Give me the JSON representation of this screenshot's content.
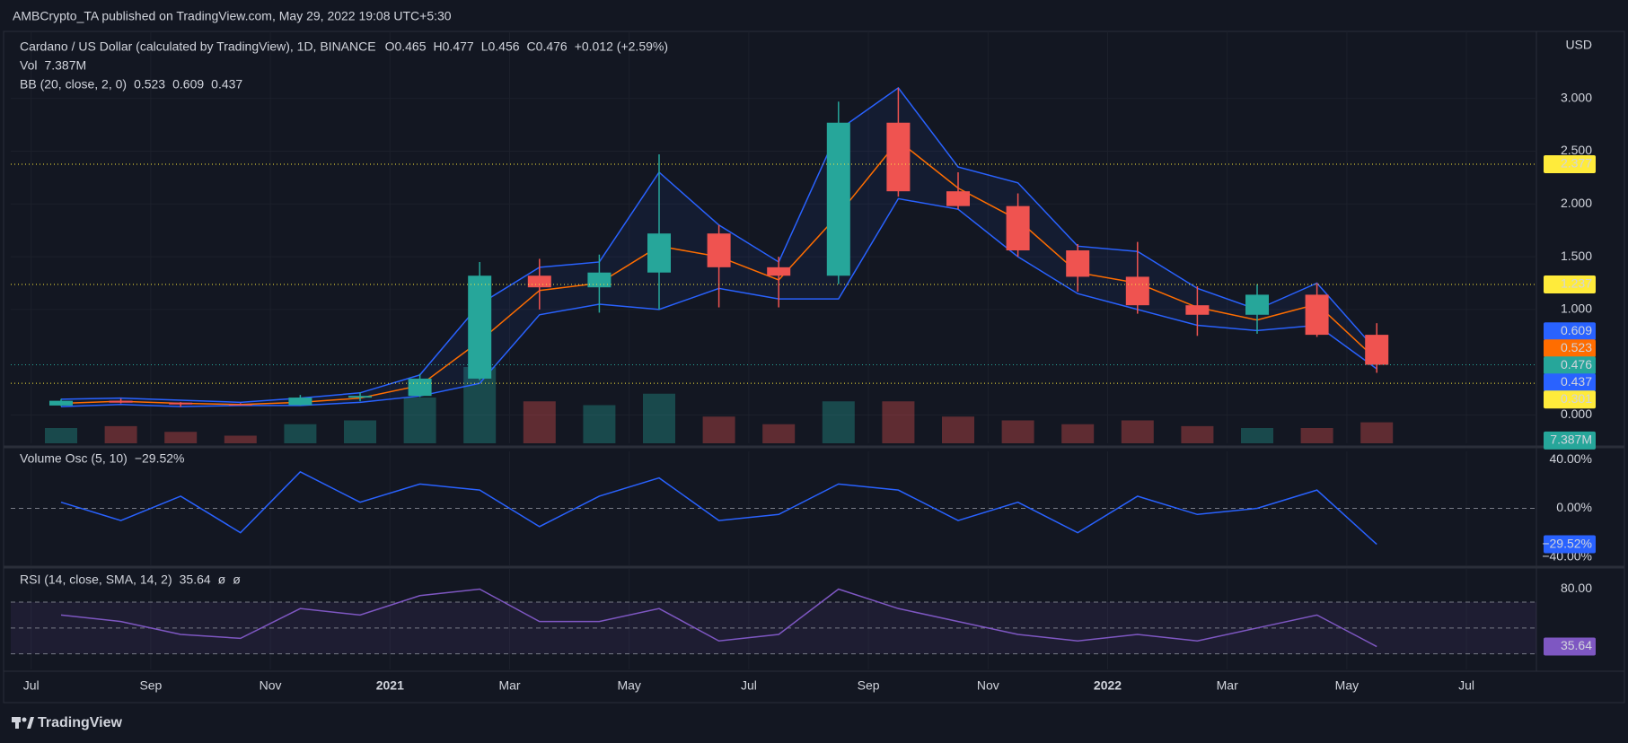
{
  "header": {
    "publisher": "AMBCrypto_TA published on TradingView.com, May 29, 2022 19:08 UTC+5:30"
  },
  "chart_data": [
    {
      "type": "candlestick",
      "title": "Cardano / US Dollar (calculated by TradingView), 1D, BINANCE",
      "legend": [
        {
          "key": "O",
          "value": 0.465
        },
        {
          "key": "H",
          "value": 0.477
        },
        {
          "key": "L",
          "value": 0.456
        },
        {
          "key": "C",
          "value": 0.476
        }
      ],
      "change": "+0.012 (+2.59%)",
      "y_axis_label": "USD",
      "x": [
        "2020-07",
        "2020-08",
        "2020-09",
        "2020-10",
        "2020-11",
        "2020-12",
        "2021-01",
        "2021-02",
        "2021-03",
        "2021-04",
        "2021-05",
        "2021-06",
        "2021-07",
        "2021-08",
        "2021-09",
        "2021-10",
        "2021-11",
        "2021-12",
        "2022-01",
        "2022-02",
        "2022-03",
        "2022-04",
        "2022-05"
      ],
      "open": [
        0.09,
        0.135,
        0.117,
        0.1,
        0.094,
        0.165,
        0.181,
        0.345,
        1.32,
        1.21,
        1.35,
        1.72,
        1.4,
        1.32,
        2.77,
        2.12,
        1.98,
        1.56,
        1.31,
        1.04,
        0.95,
        1.14,
        0.76
      ],
      "high": [
        0.152,
        0.155,
        0.122,
        0.112,
        0.19,
        0.215,
        0.39,
        1.45,
        1.48,
        1.52,
        2.47,
        1.8,
        1.5,
        2.97,
        3.1,
        2.3,
        2.1,
        1.62,
        1.64,
        1.22,
        1.24,
        1.25,
        0.87
      ],
      "low": [
        0.085,
        0.11,
        0.077,
        0.091,
        0.09,
        0.13,
        0.17,
        0.33,
        1.0,
        0.97,
        1.0,
        1.02,
        1.02,
        1.24,
        2.07,
        1.95,
        1.5,
        1.17,
        0.96,
        0.75,
        0.77,
        0.74,
        0.4
      ],
      "close": [
        0.135,
        0.117,
        0.1,
        0.094,
        0.165,
        0.181,
        0.345,
        1.32,
        1.21,
        1.35,
        1.72,
        1.4,
        1.32,
        2.77,
        2.12,
        1.98,
        1.56,
        1.31,
        1.04,
        0.95,
        1.14,
        0.76,
        0.476
      ],
      "up_color": "#26a69a",
      "down_color": "#ef5350",
      "ylim": [
        -0.268,
        3.635
      ],
      "yticks": [
        {
          "value": 0,
          "label": "0.000"
        },
        {
          "value": 1,
          "label": "1.000"
        },
        {
          "value": 1.5,
          "label": "1.500"
        },
        {
          "value": 2,
          "label": "2.000"
        },
        {
          "value": 2.5,
          "label": "2.500"
        },
        {
          "value": 3,
          "label": "3.000"
        }
      ],
      "xticks": [
        {
          "value": "2020-07",
          "label": "Jul"
        },
        {
          "value": "2020-09",
          "label": "Sep"
        },
        {
          "value": "2020-11",
          "label": "Nov"
        },
        {
          "value": "2021-01",
          "label": "2021"
        },
        {
          "value": "2021-03",
          "label": "Mar"
        },
        {
          "value": "2021-05",
          "label": "May"
        },
        {
          "value": "2021-07",
          "label": "Jul"
        },
        {
          "value": "2021-09",
          "label": "Sep"
        },
        {
          "value": "2021-11",
          "label": "Nov"
        },
        {
          "value": "2022-01",
          "label": "2022"
        },
        {
          "value": "2022-03",
          "label": "Mar"
        },
        {
          "value": "2022-05",
          "label": "May"
        },
        {
          "value": "2022-07",
          "label": "Jul"
        }
      ],
      "grid": true,
      "volume": {
        "name": "Vol",
        "values": [
          40,
          45,
          30,
          20,
          50,
          60,
          120,
          200,
          110,
          100,
          130,
          70,
          50,
          110,
          110,
          70,
          60,
          50,
          60,
          45,
          40,
          40,
          55
        ],
        "last": {
          "value": 7.387,
          "label": "7.387M"
        }
      },
      "bb": {
        "name": "BB (20, close, 2, 0)",
        "basis": {
          "color": "#ff6d00",
          "values": [
            0.11,
            0.13,
            0.11,
            0.1,
            0.12,
            0.16,
            0.28,
            0.7,
            1.18,
            1.25,
            1.6,
            1.5,
            1.28,
            1.9,
            2.6,
            2.15,
            1.85,
            1.35,
            1.25,
            1.02,
            0.9,
            1.05,
            0.523
          ]
        },
        "upper": {
          "color": "#2962ff",
          "values": [
            0.15,
            0.16,
            0.14,
            0.12,
            0.16,
            0.21,
            0.38,
            1.05,
            1.4,
            1.45,
            2.3,
            1.8,
            1.45,
            2.7,
            3.1,
            2.35,
            2.2,
            1.6,
            1.55,
            1.2,
            1.0,
            1.25,
            0.609
          ]
        },
        "lower": {
          "color": "#2962ff",
          "values": [
            0.08,
            0.1,
            0.08,
            0.09,
            0.09,
            0.12,
            0.18,
            0.3,
            0.95,
            1.05,
            1.0,
            1.2,
            1.1,
            1.1,
            2.05,
            1.95,
            1.5,
            1.15,
            1.0,
            0.85,
            0.8,
            0.85,
            0.437
          ]
        }
      },
      "levels": [
        {
          "value": 2.377,
          "color": "#ffeb3b"
        },
        {
          "value": 1.237,
          "color": "#ffeb3b"
        },
        {
          "value": 0.301,
          "color": "#ffeb3b"
        }
      ]
    },
    {
      "type": "line",
      "title": "Volume Osc (5, 10)",
      "color": "#2962ff",
      "x": [
        "2020-07",
        "2020-08",
        "2020-09",
        "2020-10",
        "2020-11",
        "2020-12",
        "2021-01",
        "2021-02",
        "2021-03",
        "2021-04",
        "2021-05",
        "2021-06",
        "2021-07",
        "2021-08",
        "2021-09",
        "2021-10",
        "2021-11",
        "2021-12",
        "2022-01",
        "2022-02",
        "2022-03",
        "2022-04",
        "2022-05"
      ],
      "values": [
        5,
        -10,
        10,
        -20,
        30,
        5,
        20,
        15,
        -15,
        10,
        25,
        -10,
        -5,
        20,
        15,
        -10,
        5,
        -20,
        10,
        -5,
        0,
        15,
        -29.52
      ],
      "last": {
        "value": -29.52,
        "label": "−29.52%"
      },
      "ylim": [
        -46.8,
        46.8
      ],
      "yticks": [
        {
          "value": 40,
          "label": "40.00%"
        },
        {
          "value": 0,
          "label": "0.00%"
        },
        {
          "value": -40,
          "label": "−40.00%"
        }
      ],
      "dashed_lines": [
        0
      ]
    },
    {
      "type": "line",
      "title": "RSI (14, close, SMA, 14, 2)",
      "color": "#7e57c2",
      "extra": [
        "ø",
        "ø"
      ],
      "x": [
        "2020-07",
        "2020-08",
        "2020-09",
        "2020-10",
        "2020-11",
        "2020-12",
        "2021-01",
        "2021-02",
        "2021-03",
        "2021-04",
        "2021-05",
        "2021-06",
        "2021-07",
        "2021-08",
        "2021-09",
        "2021-10",
        "2021-11",
        "2021-12",
        "2022-01",
        "2022-02",
        "2022-03",
        "2022-04",
        "2022-05"
      ],
      "values": [
        60,
        55,
        45,
        42,
        65,
        60,
        75,
        80,
        55,
        55,
        65,
        40,
        45,
        80,
        65,
        55,
        45,
        40,
        45,
        40,
        50,
        60,
        35.64
      ],
      "ylim": [
        18,
        95.6
      ],
      "yticks": [
        {
          "value": 80,
          "label": "80.00"
        }
      ],
      "dashed_lines": [
        70,
        50,
        30
      ]
    }
  ],
  "footer": {
    "brand": "TradingView"
  }
}
